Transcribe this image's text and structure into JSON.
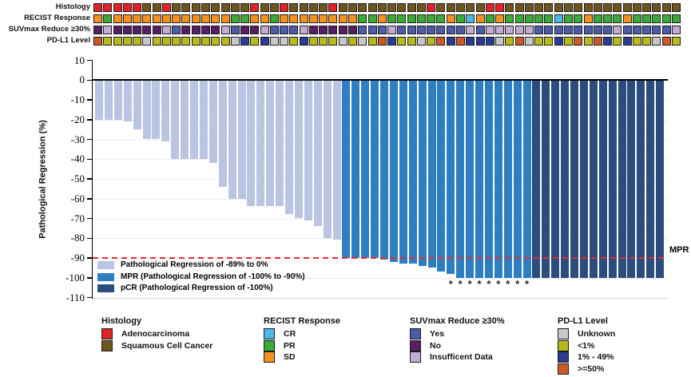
{
  "tracks": {
    "rows": [
      {
        "label": "Histology",
        "palette": {
          "A": "#e22128",
          "S": "#6e541f"
        },
        "palette_meaning": {
          "A": "Adenocarcinoma",
          "S": "Squamous Cell Cancer"
        },
        "codes": [
          "A",
          "A",
          "A",
          "A",
          "A",
          "S",
          "S",
          "A",
          "S",
          "S",
          "S",
          "S",
          "S",
          "S",
          "S",
          "S",
          "A",
          "S",
          "S",
          "A",
          "S",
          "S",
          "S",
          "S",
          "A",
          "S",
          "S",
          "S",
          "S",
          "S",
          "S",
          "S",
          "S",
          "S",
          "A",
          "S",
          "S",
          "S",
          "S",
          "S",
          "A",
          "A",
          "S",
          "S",
          "S",
          "S",
          "S",
          "S",
          "S",
          "S",
          "S",
          "S",
          "S",
          "S",
          "S",
          "S",
          "S",
          "S",
          "S",
          "S"
        ]
      },
      {
        "label": "RECIST Response",
        "palette": {
          "CR": "#4cb8e8",
          "PR": "#3caa36",
          "SD": "#f5921e"
        },
        "palette_meaning": {
          "CR": "CR",
          "PR": "PR",
          "SD": "SD"
        },
        "codes": [
          "SD",
          "PR",
          "SD",
          "SD",
          "SD",
          "SD",
          "SD",
          "SD",
          "SD",
          "SD",
          "SD",
          "SD",
          "SD",
          "SD",
          "PR",
          "PR",
          "SD",
          "SD",
          "PR",
          "SD",
          "SD",
          "SD",
          "SD",
          "SD",
          "SD",
          "SD",
          "SD",
          "PR",
          "PR",
          "SD",
          "PR",
          "PR",
          "PR",
          "PR",
          "PR",
          "PR",
          "SD",
          "PR",
          "CR",
          "SD",
          "PR",
          "SD",
          "PR",
          "PR",
          "PR",
          "PR",
          "PR",
          "CR",
          "PR",
          "PR",
          "SD",
          "PR",
          "PR",
          "PR",
          "SD",
          "PR",
          "PR",
          "PR",
          "PR",
          "PR"
        ]
      },
      {
        "label": "SUVmax Reduce ≥30%",
        "palette": {
          "Y": "#4c5ca8",
          "N": "#571f63",
          "I": "#c3abd3"
        },
        "palette_meaning": {
          "Y": "Yes",
          "N": "No",
          "I": "Insufficent Data"
        },
        "codes": [
          "N",
          "I",
          "N",
          "N",
          "N",
          "N",
          "N",
          "I",
          "Y",
          "N",
          "N",
          "N",
          "N",
          "I",
          "Y",
          "N",
          "N",
          "I",
          "Y",
          "Y",
          "Y",
          "I",
          "N",
          "N",
          "N",
          "N",
          "N",
          "Y",
          "Y",
          "Y",
          "I",
          "Y",
          "Y",
          "Y",
          "Y",
          "Y",
          "Y",
          "Y",
          "I",
          "Y",
          "I",
          "I",
          "I",
          "I",
          "I",
          "Y",
          "Y",
          "Y",
          "Y",
          "Y",
          "Y",
          "Y",
          "Y",
          "I",
          "Y",
          "Y",
          "Y",
          "Y",
          "Y",
          "I"
        ]
      },
      {
        "label": "PD-L1 Level",
        "palette": {
          "U": "#c8c8c8",
          "L": "#b8ba1c",
          "M": "#2a3b93",
          "H": "#cc5a28"
        },
        "palette_meaning": {
          "U": "Unknown",
          "L": "<1%",
          "M": "1% - 49%",
          "H": ">=50%"
        },
        "codes": [
          "H",
          "L",
          "L",
          "L",
          "L",
          "U",
          "L",
          "L",
          "L",
          "L",
          "L",
          "L",
          "L",
          "L",
          "U",
          "M",
          "L",
          "M",
          "U",
          "U",
          "L",
          "M",
          "L",
          "L",
          "L",
          "U",
          "L",
          "U",
          "L",
          "H",
          "M",
          "L",
          "L",
          "U",
          "L",
          "H",
          "M",
          "H",
          "M",
          "M",
          "M",
          "U",
          "L",
          "H",
          "U",
          "L",
          "L",
          "M",
          "L",
          "H",
          "L",
          "H",
          "M",
          "L",
          "M",
          "L",
          "L",
          "U",
          "H",
          "L"
        ]
      }
    ]
  },
  "chart_data": {
    "type": "bar",
    "subtype": "waterfall",
    "ylabel": "Pathological Regression (%)",
    "ylim": [
      -110,
      10
    ],
    "yticks": [
      10,
      0,
      -10,
      -20,
      -30,
      -40,
      -50,
      -60,
      -70,
      -80,
      -90,
      -100,
      -110
    ],
    "grid": "horizontal-faint",
    "threshold_line": {
      "value": -90,
      "label": "MPR",
      "color": "#e92b2e",
      "style": "dashed"
    },
    "series": [
      {
        "name": "Pathological Regression of -89% to 0%",
        "color": "#b9c5e2",
        "values": [
          -20,
          -20,
          -20,
          -21,
          -25,
          -30,
          -30,
          -31,
          -40,
          -40,
          -40,
          -40,
          -42,
          -54,
          -60,
          -60,
          -64,
          -64,
          -64,
          -64,
          -68,
          -70,
          -71,
          -74,
          -80,
          -81
        ]
      },
      {
        "name": "MPR (Pathological Regression of -100% to -90%)",
        "color": "#2e7fc2",
        "values": [
          -90,
          -90,
          -90,
          -90,
          -91,
          -92,
          -93,
          -93,
          -94,
          -95,
          -97,
          -98,
          -100,
          -100,
          -100,
          -100,
          -100,
          -100,
          -100,
          -100
        ]
      },
      {
        "name": "pCR (Pathological Regression of -100%)",
        "color": "#2b4d7e",
        "values": [
          -100,
          -100,
          -100,
          -100,
          -100,
          -100,
          -100,
          -100,
          -100,
          -100,
          -100,
          -100,
          -100,
          -100
        ]
      }
    ],
    "asterisk_bar_indices": [
      38,
      39,
      40,
      41,
      42,
      43,
      44,
      45,
      46
    ],
    "asterisk_glyph": "*"
  },
  "bottom_legend": {
    "groups": [
      {
        "title": "Histology",
        "items": [
          {
            "label": "Adenocarcinoma",
            "color": "#e22128"
          },
          {
            "label": "Squamous Cell Cancer",
            "color": "#6e541f"
          }
        ]
      },
      {
        "title": "RECIST Response",
        "items": [
          {
            "label": "CR",
            "color": "#4cb8e8"
          },
          {
            "label": "PR",
            "color": "#3caa36"
          },
          {
            "label": "SD",
            "color": "#f5921e"
          }
        ]
      },
      {
        "title": "SUVmax Reduce ≥30%",
        "items": [
          {
            "label": "Yes",
            "color": "#4c5ca8"
          },
          {
            "label": "No",
            "color": "#571f63"
          },
          {
            "label": "Insufficent Data",
            "color": "#c3abd3"
          }
        ]
      },
      {
        "title": "PD-L1 Level",
        "items": [
          {
            "label": "Unknown",
            "color": "#c8c8c8"
          },
          {
            "label": "<1%",
            "color": "#b8ba1c"
          },
          {
            "label": "1% - 49%",
            "color": "#2a3b93"
          },
          {
            "label": ">=50%",
            "color": "#cc5a28"
          }
        ]
      }
    ]
  }
}
